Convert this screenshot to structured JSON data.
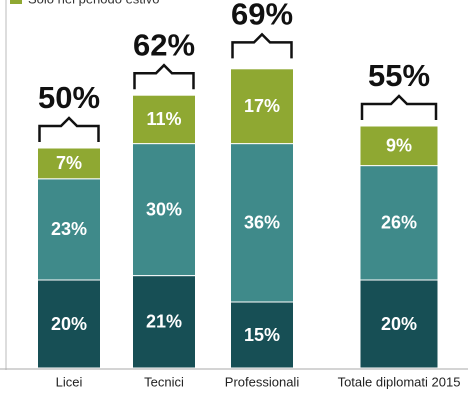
{
  "chart_data": {
    "type": "stacked_bar",
    "categories": [
      "Licei",
      "Tecnici",
      "Professionali",
      "Totale diplomati 2015"
    ],
    "series": [
      {
        "color": "#174f55",
        "values": [
          20,
          21,
          15,
          20
        ],
        "value_labels": [
          "20%",
          "21%",
          "15%",
          "20%"
        ]
      },
      {
        "color": "#3f8a8a",
        "values": [
          23,
          30,
          36,
          26
        ],
        "value_labels": [
          "23%",
          "30%",
          "36%",
          "26%"
        ]
      },
      {
        "name": "Solo nel periodo estivo",
        "color": "#8fa832",
        "values": [
          7,
          11,
          17,
          9
        ],
        "value_labels": [
          "7%",
          "11%",
          "17%",
          "9%"
        ]
      }
    ],
    "totals": [
      50,
      62,
      69,
      55
    ],
    "total_labels": [
      "50%",
      "62%",
      "69%",
      "55%"
    ]
  }
}
